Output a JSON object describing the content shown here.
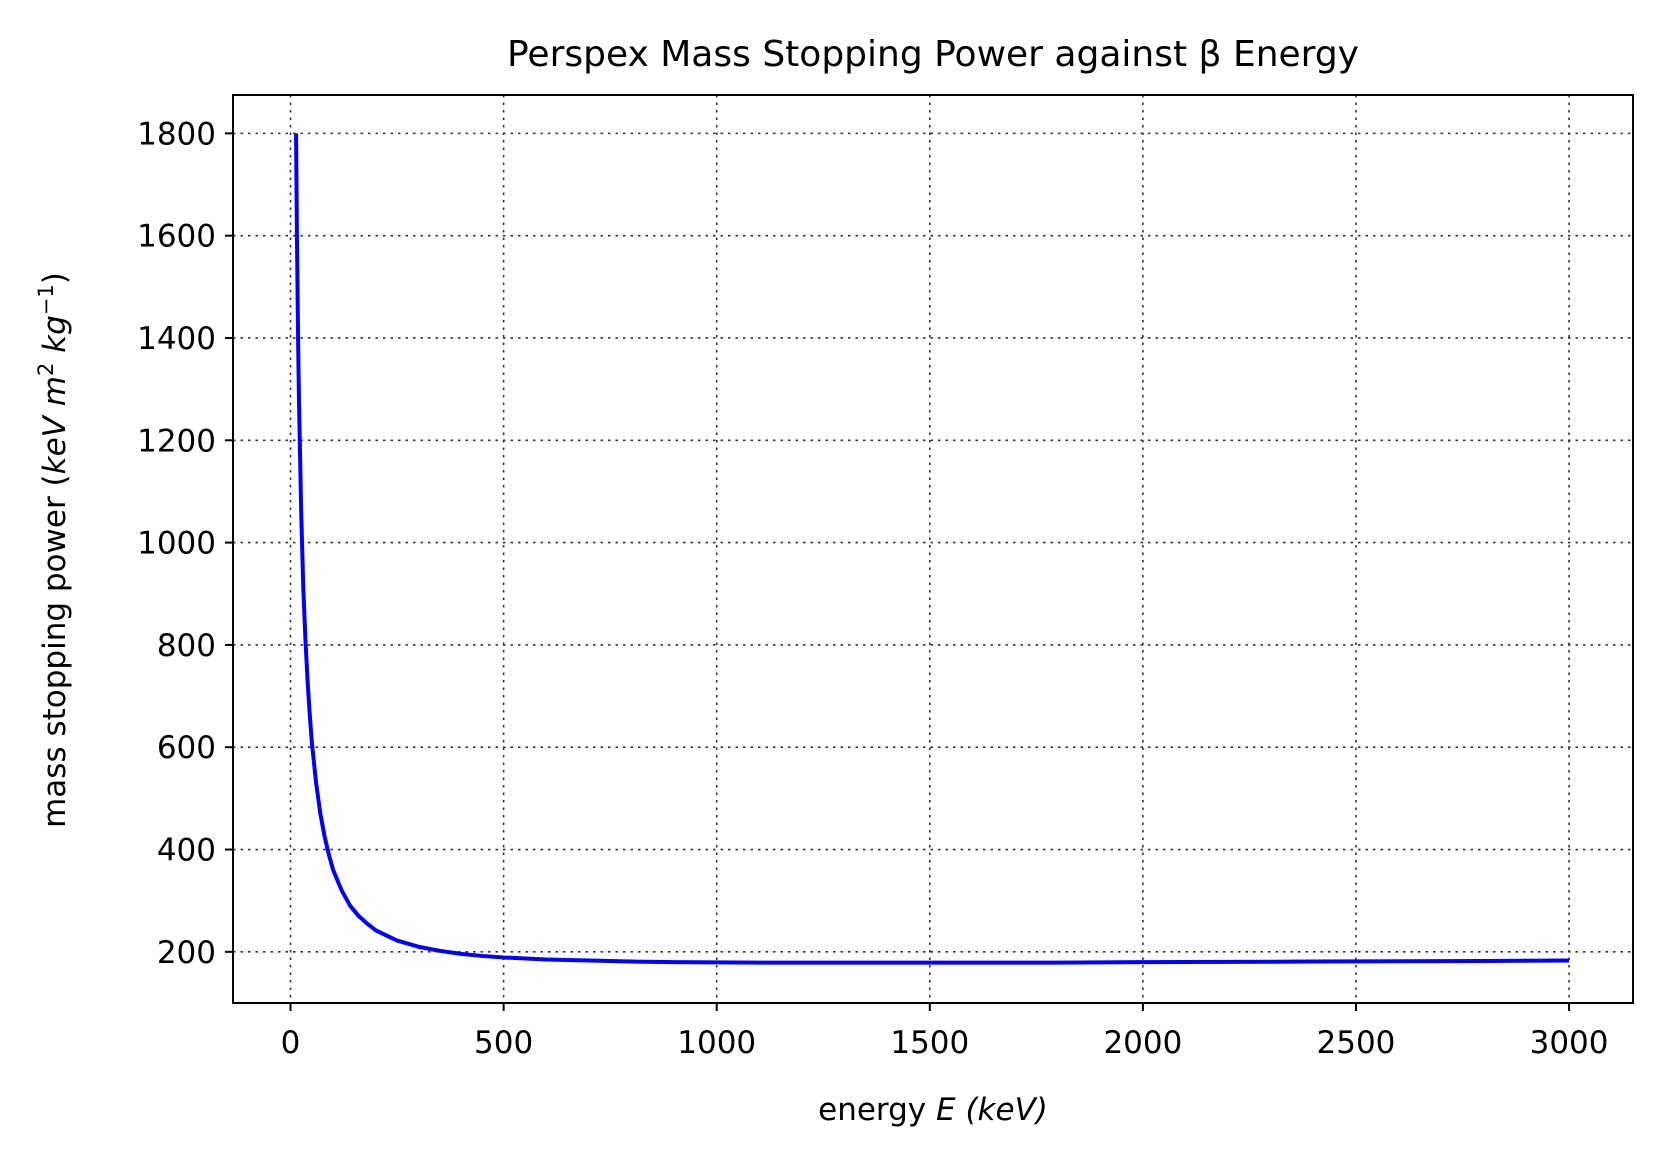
{
  "chart_data": {
    "type": "line",
    "title": "Perspex Mass Stopping Power against β Energy",
    "xlabel_prefix": "energy ",
    "xlabel_var": "E",
    "xlabel_unit": "(keV)",
    "ylabel_prefix": "mass stopping power ",
    "ylabel_unit_open": "(",
    "ylabel_unit_1": "keV m",
    "ylabel_sup_1": "2",
    "ylabel_unit_2": " kg",
    "ylabel_sup_2": "−1",
    "ylabel_unit_close": ")",
    "xlim": [
      -135,
      3150
    ],
    "ylim": [
      100,
      1875
    ],
    "xticks": [
      0,
      500,
      1000,
      1500,
      2000,
      2500,
      3000
    ],
    "yticks": [
      200,
      400,
      600,
      800,
      1000,
      1200,
      1400,
      1600,
      1800
    ],
    "grid": true,
    "line_color": "#0000ff",
    "series": [
      {
        "x": [
          13,
          15,
          18,
          20,
          25,
          30,
          35,
          40,
          45,
          50,
          60,
          70,
          80,
          90,
          100,
          120,
          140,
          160,
          180,
          200,
          250,
          300,
          350,
          400,
          450,
          500,
          600,
          700,
          800,
          900,
          1000,
          1100,
          1200,
          1300,
          1400,
          1500,
          1600,
          1700,
          1800,
          1900,
          2000,
          2200,
          2400,
          2600,
          2800,
          3000
        ],
        "y": [
          1800,
          1600,
          1380,
          1270,
          1060,
          910,
          810,
          730,
          665,
          610,
          530,
          470,
          425,
          390,
          360,
          320,
          290,
          270,
          255,
          242,
          222,
          210,
          202,
          196,
          192,
          189,
          185,
          183,
          181,
          180,
          179.5,
          179,
          179,
          179,
          179,
          179,
          179,
          179,
          179,
          179.5,
          180,
          180.5,
          181,
          181.5,
          182,
          183
        ]
      }
    ]
  }
}
